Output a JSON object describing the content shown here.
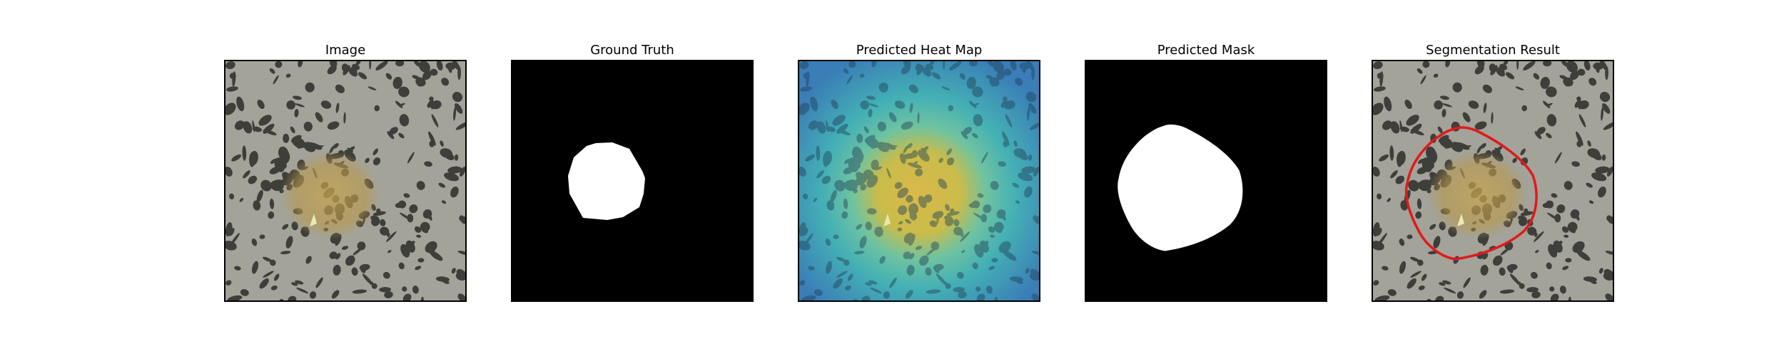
{
  "panels": [
    {
      "title": "Image"
    },
    {
      "title": "Ground Truth"
    },
    {
      "title": "Predicted Heat Map"
    },
    {
      "title": "Predicted Mask"
    },
    {
      "title": "Segmentation Result"
    }
  ],
  "colors": {
    "background": "#ffffff",
    "frame_border": "#000000",
    "texture_light": "#a7a79d",
    "texture_dark": "#3f3f3b",
    "defect_yellow": "#b89a4a",
    "mask_white": "#ffffff",
    "mask_black": "#000000",
    "heatmap_cool": "#3a7fb3",
    "heatmap_mid": "#45b7a8",
    "heatmap_hot": "#d9c34a",
    "contour_red": "#e01a1a"
  }
}
